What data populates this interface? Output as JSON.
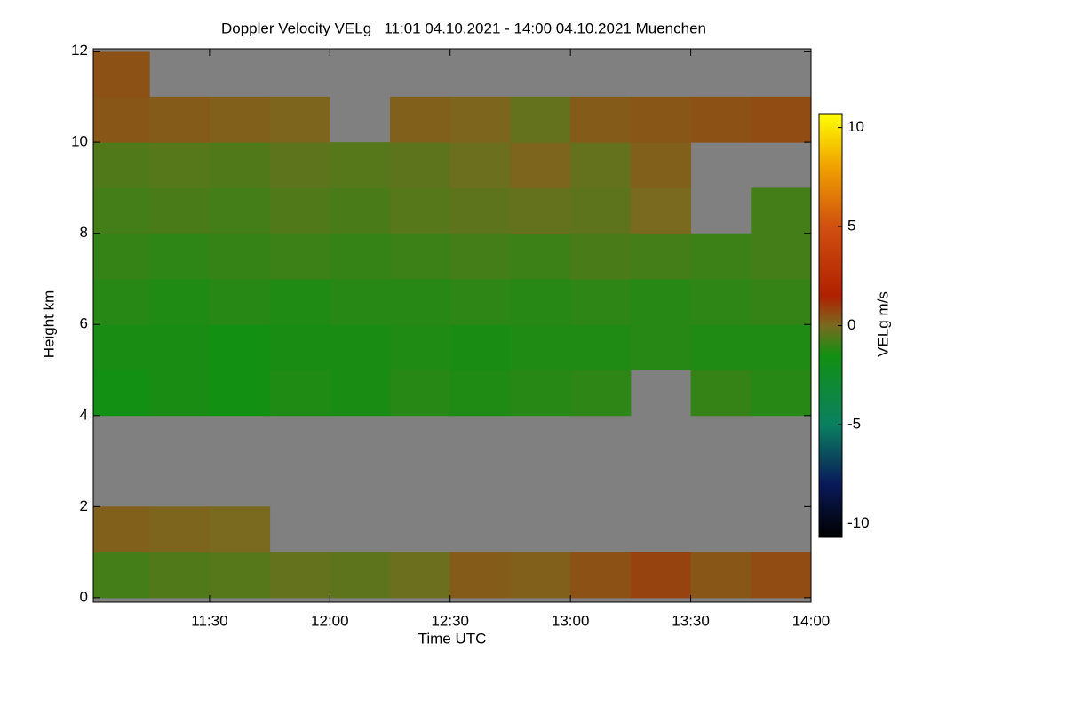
{
  "chart_data": {
    "type": "heatmap",
    "title": "Doppler Velocity VELg   11:01 04.10.2021 - 14:00 04.10.2021 Muenchen",
    "x_label": "Time UTC",
    "y_label": "Height km",
    "colorbar_label": "VELg m/s",
    "xlim": [
      11.0167,
      14
    ],
    "ylim": [
      -0.1,
      12.05
    ],
    "zlim": [
      -10.7,
      10.7
    ],
    "xticks": [
      {
        "value": 11.5,
        "label": "11:30"
      },
      {
        "value": 12,
        "label": "12:00"
      },
      {
        "value": 12.5,
        "label": "12:30"
      },
      {
        "value": 13,
        "label": "13:00"
      },
      {
        "value": 13.5,
        "label": "13:30"
      },
      {
        "value": 14,
        "label": "14:00"
      }
    ],
    "yticks": [
      0,
      2,
      4,
      6,
      8,
      10,
      12
    ],
    "zticks": [
      -10,
      -5,
      0,
      5,
      10
    ],
    "xbins": [
      11.0167,
      11.25,
      11.5,
      11.75,
      12,
      12.25,
      12.5,
      12.75,
      13,
      13.25,
      13.5,
      13.75,
      14
    ],
    "ybins": [
      0,
      1,
      2,
      3,
      4,
      5,
      6,
      7,
      8,
      9,
      10,
      11,
      12
    ],
    "background": "#808080",
    "colorscale": [
      [
        -10.7,
        "#000000"
      ],
      [
        -8,
        "#0a1a5a"
      ],
      [
        -5,
        "#0a8060"
      ],
      [
        -1.5,
        "#129012"
      ],
      [
        0,
        "#7a6a20"
      ],
      [
        1.5,
        "#b02000"
      ],
      [
        5,
        "#d05010"
      ],
      [
        8,
        "#f0a000"
      ],
      [
        10.7,
        "#ffff00"
      ]
    ],
    "z": [
      [
        -0.8,
        -0.6,
        -0.5,
        -0.3,
        -0.4,
        -0.2,
        0.3,
        0.2,
        0.5,
        0.8,
        0.4,
        0.6
      ],
      [
        0.2,
        0.1,
        0.0,
        null,
        null,
        null,
        null,
        null,
        null,
        null,
        null,
        null
      ],
      [
        null,
        null,
        null,
        null,
        null,
        null,
        null,
        null,
        null,
        null,
        null,
        null
      ],
      [
        null,
        null,
        null,
        null,
        null,
        null,
        null,
        null,
        null,
        null,
        null,
        null
      ],
      [
        -1.6,
        -1.4,
        -1.5,
        -1.3,
        -1.4,
        -1.2,
        -1.3,
        -1.2,
        -1.1,
        null,
        -1.0,
        -1.2
      ],
      [
        -1.4,
        -1.4,
        -1.5,
        -1.4,
        -1.4,
        -1.3,
        -1.4,
        -1.3,
        -1.3,
        -1.2,
        -1.3,
        -1.3
      ],
      [
        -1.2,
        -1.3,
        -1.2,
        -1.3,
        -1.2,
        -1.2,
        -1.1,
        -1.2,
        -1.1,
        -1.2,
        -1.1,
        -1.0
      ],
      [
        -1.0,
        -1.1,
        -1.0,
        -0.9,
        -1.0,
        -0.9,
        -0.8,
        -0.9,
        -0.7,
        -0.8,
        -0.9,
        -0.8
      ],
      [
        -0.8,
        -0.7,
        -0.8,
        -0.6,
        -0.7,
        -0.5,
        -0.4,
        -0.3,
        -0.4,
        0.0,
        null,
        -0.8
      ],
      [
        -0.6,
        -0.5,
        -0.6,
        -0.4,
        -0.5,
        -0.4,
        -0.2,
        0.1,
        -0.3,
        0.2,
        null,
        null
      ],
      [
        0.4,
        0.3,
        0.2,
        0.1,
        null,
        0.2,
        0.1,
        -0.3,
        0.3,
        0.4,
        0.5,
        0.6
      ],
      [
        0.5,
        null,
        null,
        null,
        null,
        null,
        null,
        null,
        null,
        null,
        null,
        null
      ]
    ]
  }
}
